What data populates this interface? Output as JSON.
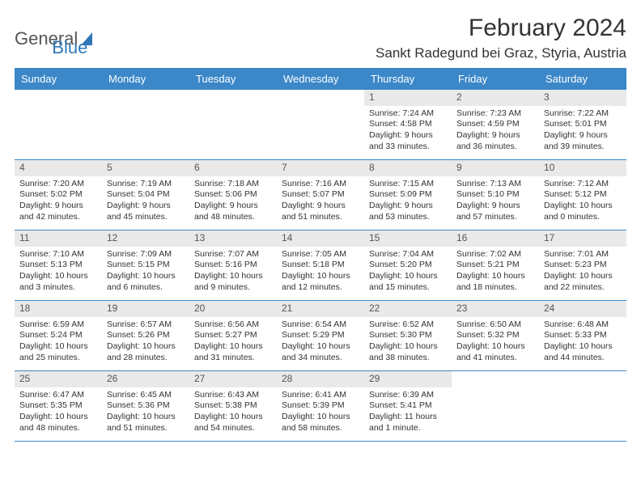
{
  "logo": {
    "part1": "General",
    "part2": "Blue"
  },
  "title": "February 2024",
  "location": "Sankt Radegund bei Graz, Styria, Austria",
  "colors": {
    "header_bg": "#3b87c8",
    "header_text": "#ffffff",
    "day_num_bg": "#e9e9e9",
    "text": "#333333",
    "logo_gray": "#555555",
    "logo_blue": "#2f78b7"
  },
  "day_names": [
    "Sunday",
    "Monday",
    "Tuesday",
    "Wednesday",
    "Thursday",
    "Friday",
    "Saturday"
  ],
  "weeks": [
    [
      null,
      null,
      null,
      null,
      {
        "n": "1",
        "sr": "Sunrise: 7:24 AM",
        "ss": "Sunset: 4:58 PM",
        "d1": "Daylight: 9 hours",
        "d2": "and 33 minutes."
      },
      {
        "n": "2",
        "sr": "Sunrise: 7:23 AM",
        "ss": "Sunset: 4:59 PM",
        "d1": "Daylight: 9 hours",
        "d2": "and 36 minutes."
      },
      {
        "n": "3",
        "sr": "Sunrise: 7:22 AM",
        "ss": "Sunset: 5:01 PM",
        "d1": "Daylight: 9 hours",
        "d2": "and 39 minutes."
      }
    ],
    [
      {
        "n": "4",
        "sr": "Sunrise: 7:20 AM",
        "ss": "Sunset: 5:02 PM",
        "d1": "Daylight: 9 hours",
        "d2": "and 42 minutes."
      },
      {
        "n": "5",
        "sr": "Sunrise: 7:19 AM",
        "ss": "Sunset: 5:04 PM",
        "d1": "Daylight: 9 hours",
        "d2": "and 45 minutes."
      },
      {
        "n": "6",
        "sr": "Sunrise: 7:18 AM",
        "ss": "Sunset: 5:06 PM",
        "d1": "Daylight: 9 hours",
        "d2": "and 48 minutes."
      },
      {
        "n": "7",
        "sr": "Sunrise: 7:16 AM",
        "ss": "Sunset: 5:07 PM",
        "d1": "Daylight: 9 hours",
        "d2": "and 51 minutes."
      },
      {
        "n": "8",
        "sr": "Sunrise: 7:15 AM",
        "ss": "Sunset: 5:09 PM",
        "d1": "Daylight: 9 hours",
        "d2": "and 53 minutes."
      },
      {
        "n": "9",
        "sr": "Sunrise: 7:13 AM",
        "ss": "Sunset: 5:10 PM",
        "d1": "Daylight: 9 hours",
        "d2": "and 57 minutes."
      },
      {
        "n": "10",
        "sr": "Sunrise: 7:12 AM",
        "ss": "Sunset: 5:12 PM",
        "d1": "Daylight: 10 hours",
        "d2": "and 0 minutes."
      }
    ],
    [
      {
        "n": "11",
        "sr": "Sunrise: 7:10 AM",
        "ss": "Sunset: 5:13 PM",
        "d1": "Daylight: 10 hours",
        "d2": "and 3 minutes."
      },
      {
        "n": "12",
        "sr": "Sunrise: 7:09 AM",
        "ss": "Sunset: 5:15 PM",
        "d1": "Daylight: 10 hours",
        "d2": "and 6 minutes."
      },
      {
        "n": "13",
        "sr": "Sunrise: 7:07 AM",
        "ss": "Sunset: 5:16 PM",
        "d1": "Daylight: 10 hours",
        "d2": "and 9 minutes."
      },
      {
        "n": "14",
        "sr": "Sunrise: 7:05 AM",
        "ss": "Sunset: 5:18 PM",
        "d1": "Daylight: 10 hours",
        "d2": "and 12 minutes."
      },
      {
        "n": "15",
        "sr": "Sunrise: 7:04 AM",
        "ss": "Sunset: 5:20 PM",
        "d1": "Daylight: 10 hours",
        "d2": "and 15 minutes."
      },
      {
        "n": "16",
        "sr": "Sunrise: 7:02 AM",
        "ss": "Sunset: 5:21 PM",
        "d1": "Daylight: 10 hours",
        "d2": "and 18 minutes."
      },
      {
        "n": "17",
        "sr": "Sunrise: 7:01 AM",
        "ss": "Sunset: 5:23 PM",
        "d1": "Daylight: 10 hours",
        "d2": "and 22 minutes."
      }
    ],
    [
      {
        "n": "18",
        "sr": "Sunrise: 6:59 AM",
        "ss": "Sunset: 5:24 PM",
        "d1": "Daylight: 10 hours",
        "d2": "and 25 minutes."
      },
      {
        "n": "19",
        "sr": "Sunrise: 6:57 AM",
        "ss": "Sunset: 5:26 PM",
        "d1": "Daylight: 10 hours",
        "d2": "and 28 minutes."
      },
      {
        "n": "20",
        "sr": "Sunrise: 6:56 AM",
        "ss": "Sunset: 5:27 PM",
        "d1": "Daylight: 10 hours",
        "d2": "and 31 minutes."
      },
      {
        "n": "21",
        "sr": "Sunrise: 6:54 AM",
        "ss": "Sunset: 5:29 PM",
        "d1": "Daylight: 10 hours",
        "d2": "and 34 minutes."
      },
      {
        "n": "22",
        "sr": "Sunrise: 6:52 AM",
        "ss": "Sunset: 5:30 PM",
        "d1": "Daylight: 10 hours",
        "d2": "and 38 minutes."
      },
      {
        "n": "23",
        "sr": "Sunrise: 6:50 AM",
        "ss": "Sunset: 5:32 PM",
        "d1": "Daylight: 10 hours",
        "d2": "and 41 minutes."
      },
      {
        "n": "24",
        "sr": "Sunrise: 6:48 AM",
        "ss": "Sunset: 5:33 PM",
        "d1": "Daylight: 10 hours",
        "d2": "and 44 minutes."
      }
    ],
    [
      {
        "n": "25",
        "sr": "Sunrise: 6:47 AM",
        "ss": "Sunset: 5:35 PM",
        "d1": "Daylight: 10 hours",
        "d2": "and 48 minutes."
      },
      {
        "n": "26",
        "sr": "Sunrise: 6:45 AM",
        "ss": "Sunset: 5:36 PM",
        "d1": "Daylight: 10 hours",
        "d2": "and 51 minutes."
      },
      {
        "n": "27",
        "sr": "Sunrise: 6:43 AM",
        "ss": "Sunset: 5:38 PM",
        "d1": "Daylight: 10 hours",
        "d2": "and 54 minutes."
      },
      {
        "n": "28",
        "sr": "Sunrise: 6:41 AM",
        "ss": "Sunset: 5:39 PM",
        "d1": "Daylight: 10 hours",
        "d2": "and 58 minutes."
      },
      {
        "n": "29",
        "sr": "Sunrise: 6:39 AM",
        "ss": "Sunset: 5:41 PM",
        "d1": "Daylight: 11 hours",
        "d2": "and 1 minute."
      },
      null,
      null
    ]
  ]
}
